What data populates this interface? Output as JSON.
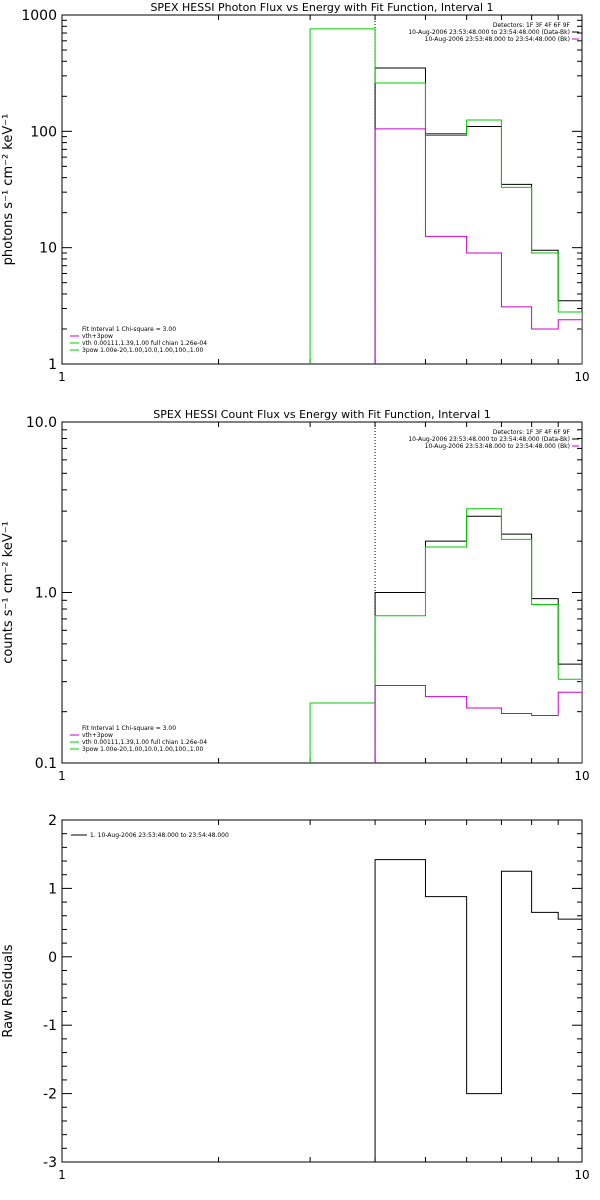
{
  "colors": {
    "data": "#000000",
    "fit_total": "#00cc00",
    "background": "#cc00cc",
    "marker": "#000000"
  },
  "chart_data": [
    {
      "id": "photon",
      "type": "line",
      "title": "SPEX HESSI Photon Flux vs Energy with Fit Function, Interval 1",
      "ylabel": "photons s⁻¹ cm⁻² keV⁻¹",
      "xlabel": "",
      "xscale": "log",
      "yscale": "log",
      "xlim": [
        1,
        10
      ],
      "ylim": [
        1,
        1000
      ],
      "xtick_labels": [
        "1",
        "10"
      ],
      "ytick_labels": [
        "1",
        "10",
        "100",
        "1000"
      ],
      "ytick_values": [
        1,
        10,
        100,
        1000
      ],
      "marker_x": 4,
      "legend_top_right": [
        "Detectors: 1F 3F 4F 6F 9F",
        "10-Aug-2006 23:53:48.000 to 23:54:48.000 (Data-Bk)",
        "10-Aug-2006 23:53:48.000 to 23:54:48.000 (Bk)"
      ],
      "legend_bottom_left": [
        "Fit Interval 1   Chi-square = 3.00",
        "vth+3pow",
        "vth 0.00111,1.39,1.00  full chian 1.26e-04",
        "3pow 1.00e-20,1.00,10.0,1.00,100.,1.00"
      ],
      "bin_edges": [
        3,
        4,
        5,
        6,
        7,
        8,
        9,
        10
      ],
      "series": [
        {
          "name": "10-Aug-2006 23:53:48.000 to 23:54:48.000 (Data-Bk)",
          "values": [
            null,
            350,
            95,
            110,
            35,
            9.5,
            3.5
          ]
        },
        {
          "name": "vth+3pow",
          "values": [
            760,
            260,
            92,
            125,
            33,
            9,
            2.8
          ]
        },
        {
          "name": "10-Aug-2006 23:53:48.000 to 23:54:48.000 (Bk)",
          "values": [
            null,
            105,
            12.5,
            9,
            3.1,
            2.0,
            2.4
          ]
        }
      ]
    },
    {
      "id": "count",
      "type": "line",
      "title": "SPEX HESSI Count Flux vs Energy with Fit Function, Interval 1",
      "ylabel": "counts s⁻¹ cm⁻² keV⁻¹",
      "xlabel": "",
      "xscale": "log",
      "yscale": "log",
      "xlim": [
        1,
        10
      ],
      "ylim": [
        0.1,
        10
      ],
      "xtick_labels": [
        "1",
        "10"
      ],
      "ytick_labels": [
        "0.1",
        "1.0",
        "10.0"
      ],
      "ytick_values": [
        0.1,
        1,
        10
      ],
      "marker_x": 4,
      "legend_top_right": [
        "Detectors: 1F 3F 4F 6F 9F",
        "10-Aug-2006 23:53:48.000 to 23:54:48.000 (Data-Bk)",
        "10-Aug-2006 23:53:48.000 to 23:54:48.000 (Bk)"
      ],
      "legend_bottom_left": [
        "Fit Interval 1   Chi-square = 3.00",
        "vth+3pow",
        "vth 0.00111,1.39,1.00  full chian 1.26e-04",
        "3pow 1.00e-20,1.00,10.0,1.00,100.,1.00"
      ],
      "bin_edges": [
        3,
        4,
        5,
        6,
        7,
        8,
        9,
        10
      ],
      "series": [
        {
          "name": "10-Aug-2006 23:53:48.000 to 23:54:48.000 (Data-Bk)",
          "values": [
            null,
            1.0,
            2.0,
            2.8,
            2.2,
            0.92,
            0.38
          ]
        },
        {
          "name": "vth+3pow",
          "values": [
            0.225,
            0.73,
            1.85,
            3.1,
            2.05,
            0.85,
            0.31
          ]
        },
        {
          "name": "10-Aug-2006 23:53:48.000 to 23:54:48.000 (Bk)",
          "values": [
            null,
            0.285,
            0.245,
            0.21,
            0.195,
            0.19,
            0.26
          ]
        }
      ]
    },
    {
      "id": "residuals",
      "type": "line",
      "title": "",
      "ylabel": "Raw Residuals",
      "xlabel": "",
      "xscale": "log",
      "yscale": "linear",
      "xlim": [
        1,
        10
      ],
      "ylim": [
        -3,
        2
      ],
      "xtick_labels": [
        "1",
        "10"
      ],
      "ytick_labels": [
        "-3",
        "-2",
        "-1",
        "0",
        "1",
        "2"
      ],
      "ytick_values": [
        -3,
        -2,
        -1,
        0,
        1,
        2
      ],
      "legend_top_left": [
        "1. 10-Aug-2006 23:53:48.000 to 23:54:48.000"
      ],
      "bin_edges": [
        4,
        5,
        6,
        7,
        8,
        9,
        10
      ],
      "series": [
        {
          "name": "1. 10-Aug-2006 23:53:48.000 to 23:54:48.000",
          "values": [
            1.42,
            0.88,
            -2.0,
            1.25,
            0.65,
            0.55
          ]
        }
      ]
    }
  ]
}
